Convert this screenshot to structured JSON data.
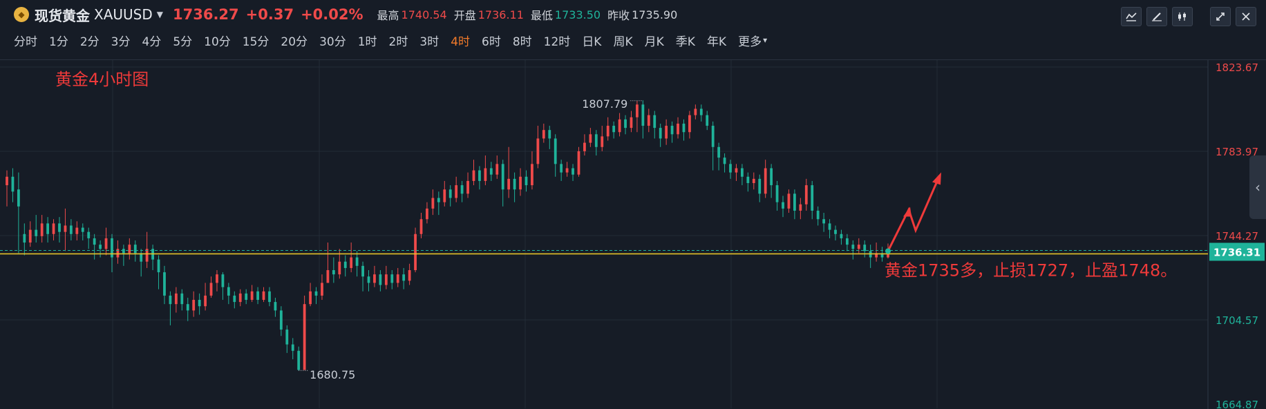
{
  "header": {
    "symbol_name": "现货黄金",
    "symbol_code": "XAUUSD",
    "price": "1736.27",
    "change": "+0.37",
    "change_pct": "+0.02%",
    "high_label": "最高",
    "high": "1740.54",
    "open_label": "开盘",
    "open": "1736.11",
    "low_label": "最低",
    "low": "1733.50",
    "prev_close_label": "昨收",
    "prev_close": "1735.90",
    "colors": {
      "up": "#ef4a4a",
      "down": "#1fb39a",
      "active_period": "#f27a2a"
    }
  },
  "toolbar": {
    "icons": [
      "indicator-icon",
      "draw-icon",
      "candle-type-icon",
      "shrink-icon",
      "close-icon"
    ]
  },
  "periods": {
    "items": [
      "分时",
      "1分",
      "2分",
      "3分",
      "4分",
      "5分",
      "10分",
      "15分",
      "20分",
      "30分",
      "1时",
      "2时",
      "3时",
      "4时",
      "6时",
      "8时",
      "12时",
      "日K",
      "周K",
      "月K",
      "季K",
      "年K",
      "更多"
    ],
    "active": "4时"
  },
  "chart_data": {
    "type": "candlestick",
    "title": "黄金4小时图",
    "ylim": [
      1664.87,
      1823.67
    ],
    "y_ticks": [
      "1823.67",
      "1783.97",
      "1744.27",
      "1704.57",
      "1664.87"
    ],
    "current_price": "1736.31",
    "reference_line": 1736.31,
    "high_marker": {
      "label": "1807.79",
      "value": 1807.79
    },
    "low_marker": {
      "label": "1680.75",
      "value": 1680.75
    },
    "annotation": "黄金1735多，止损1727，止盈1748。",
    "grid": true,
    "candles": [
      [
        1768,
        1772,
        1775,
        1758
      ],
      [
        1772,
        1765,
        1776,
        1760
      ],
      [
        1766,
        1758,
        1774,
        1736
      ],
      [
        1745,
        1741,
        1750,
        1735
      ],
      [
        1741,
        1747,
        1751,
        1739
      ],
      [
        1747,
        1744,
        1754,
        1741
      ],
      [
        1744,
        1750,
        1754,
        1741
      ],
      [
        1750,
        1745,
        1753,
        1741
      ],
      [
        1745,
        1750,
        1752,
        1742
      ],
      [
        1750,
        1746,
        1753,
        1741
      ],
      [
        1746,
        1749,
        1757,
        1737
      ],
      [
        1749,
        1745,
        1752,
        1742
      ],
      [
        1745,
        1748,
        1751,
        1742
      ],
      [
        1748,
        1746,
        1750,
        1742
      ],
      [
        1746,
        1743,
        1748,
        1738
      ],
      [
        1743,
        1740,
        1745,
        1733
      ],
      [
        1740,
        1738,
        1742,
        1734
      ],
      [
        1738,
        1743,
        1748,
        1735
      ],
      [
        1743,
        1734,
        1745,
        1727
      ],
      [
        1734,
        1738,
        1742,
        1731
      ],
      [
        1738,
        1736,
        1740,
        1730
      ],
      [
        1736,
        1740,
        1743,
        1733
      ],
      [
        1740,
        1736,
        1742,
        1732
      ],
      [
        1736,
        1732,
        1738,
        1725
      ],
      [
        1732,
        1738,
        1746,
        1729
      ],
      [
        1738,
        1733,
        1740,
        1728
      ],
      [
        1733,
        1727,
        1735,
        1719
      ],
      [
        1727,
        1716,
        1730,
        1712
      ],
      [
        1716,
        1712,
        1718,
        1702
      ],
      [
        1712,
        1717,
        1720,
        1708
      ],
      [
        1717,
        1712,
        1719,
        1709
      ],
      [
        1712,
        1709,
        1715,
        1704
      ],
      [
        1709,
        1714,
        1718,
        1706
      ],
      [
        1714,
        1711,
        1717,
        1707
      ],
      [
        1711,
        1716,
        1722,
        1709
      ],
      [
        1716,
        1722,
        1725,
        1715
      ],
      [
        1722,
        1726,
        1728,
        1718
      ],
      [
        1726,
        1720,
        1727,
        1714
      ],
      [
        1720,
        1716,
        1722,
        1712
      ],
      [
        1716,
        1713,
        1718,
        1710
      ],
      [
        1713,
        1717,
        1719,
        1711
      ],
      [
        1717,
        1714,
        1719,
        1712
      ],
      [
        1714,
        1718,
        1721,
        1713
      ],
      [
        1718,
        1714,
        1720,
        1712
      ],
      [
        1714,
        1718,
        1720,
        1713
      ],
      [
        1718,
        1713,
        1720,
        1711
      ],
      [
        1713,
        1709,
        1715,
        1706
      ],
      [
        1709,
        1700,
        1711,
        1697
      ],
      [
        1700,
        1693,
        1702,
        1689
      ],
      [
        1693,
        1690,
        1696,
        1686
      ],
      [
        1690,
        1681,
        1692,
        1680.75
      ],
      [
        1681,
        1712,
        1716,
        1681
      ],
      [
        1712,
        1718,
        1722,
        1711
      ],
      [
        1718,
        1716,
        1720,
        1712
      ],
      [
        1716,
        1722,
        1726,
        1714
      ],
      [
        1722,
        1728,
        1741,
        1722
      ],
      [
        1728,
        1726,
        1734,
        1722
      ],
      [
        1726,
        1732,
        1738,
        1724
      ],
      [
        1732,
        1729,
        1735,
        1725
      ],
      [
        1729,
        1734,
        1741,
        1727
      ],
      [
        1734,
        1730,
        1737,
        1725
      ],
      [
        1730,
        1725,
        1732,
        1718
      ],
      [
        1725,
        1722,
        1728,
        1718
      ],
      [
        1722,
        1726,
        1730,
        1720
      ],
      [
        1726,
        1721,
        1728,
        1718
      ],
      [
        1721,
        1726,
        1730,
        1719
      ],
      [
        1726,
        1722,
        1728,
        1719
      ],
      [
        1722,
        1726,
        1729,
        1720
      ],
      [
        1726,
        1723,
        1729,
        1719
      ],
      [
        1723,
        1728,
        1731,
        1721
      ],
      [
        1728,
        1745,
        1748,
        1727
      ],
      [
        1745,
        1752,
        1755,
        1743
      ],
      [
        1752,
        1757,
        1760,
        1750
      ],
      [
        1757,
        1762,
        1766,
        1754
      ],
      [
        1762,
        1760,
        1765,
        1754
      ],
      [
        1760,
        1766,
        1770,
        1758
      ],
      [
        1766,
        1762,
        1768,
        1758
      ],
      [
        1762,
        1768,
        1772,
        1760
      ],
      [
        1768,
        1764,
        1770,
        1760
      ],
      [
        1764,
        1770,
        1774,
        1762
      ],
      [
        1770,
        1775,
        1780,
        1768
      ],
      [
        1775,
        1770,
        1777,
        1766
      ],
      [
        1770,
        1776,
        1782,
        1768
      ],
      [
        1776,
        1773,
        1779,
        1770
      ],
      [
        1773,
        1778,
        1782,
        1771
      ],
      [
        1778,
        1766,
        1780,
        1758
      ],
      [
        1766,
        1771,
        1786,
        1762
      ],
      [
        1771,
        1766,
        1774,
        1760
      ],
      [
        1766,
        1772,
        1776,
        1763
      ],
      [
        1772,
        1768,
        1775,
        1765
      ],
      [
        1768,
        1778,
        1784,
        1766
      ],
      [
        1778,
        1790,
        1796,
        1776
      ],
      [
        1790,
        1794,
        1797,
        1788
      ],
      [
        1794,
        1790,
        1796,
        1785
      ],
      [
        1790,
        1778,
        1792,
        1772
      ],
      [
        1778,
        1774,
        1780,
        1770
      ],
      [
        1774,
        1776,
        1779,
        1772
      ],
      [
        1776,
        1773,
        1778,
        1770
      ],
      [
        1773,
        1784,
        1786,
        1772
      ],
      [
        1784,
        1788,
        1792,
        1782
      ],
      [
        1788,
        1792,
        1795,
        1786
      ],
      [
        1792,
        1786,
        1794,
        1782
      ],
      [
        1786,
        1791,
        1796,
        1784
      ],
      [
        1791,
        1796,
        1800,
        1789
      ],
      [
        1796,
        1793,
        1798,
        1790
      ],
      [
        1793,
        1799,
        1802,
        1791
      ],
      [
        1799,
        1795,
        1801,
        1792
      ],
      [
        1795,
        1800,
        1803,
        1793
      ],
      [
        1800,
        1806,
        1807.79,
        1793
      ],
      [
        1806,
        1796,
        1808,
        1790
      ],
      [
        1796,
        1801,
        1804,
        1793
      ],
      [
        1801,
        1795,
        1803,
        1790
      ],
      [
        1795,
        1790,
        1797,
        1786
      ],
      [
        1790,
        1796,
        1799,
        1787
      ],
      [
        1796,
        1792,
        1798,
        1788
      ],
      [
        1792,
        1797,
        1800,
        1790
      ],
      [
        1797,
        1793,
        1799,
        1789
      ],
      [
        1793,
        1801,
        1803,
        1790
      ],
      [
        1801,
        1804,
        1806,
        1799
      ],
      [
        1804,
        1801,
        1806,
        1798
      ],
      [
        1801,
        1796,
        1803,
        1794
      ],
      [
        1796,
        1786,
        1798,
        1775
      ],
      [
        1786,
        1781,
        1788,
        1775
      ],
      [
        1781,
        1778,
        1783,
        1774
      ],
      [
        1778,
        1774,
        1780,
        1771
      ],
      [
        1774,
        1776,
        1778,
        1770
      ],
      [
        1776,
        1772,
        1778,
        1768
      ],
      [
        1772,
        1769,
        1774,
        1765
      ],
      [
        1769,
        1771,
        1774,
        1766
      ],
      [
        1771,
        1764,
        1773,
        1760
      ],
      [
        1764,
        1776,
        1780,
        1762
      ],
      [
        1776,
        1768,
        1778,
        1762
      ],
      [
        1768,
        1760,
        1770,
        1756
      ],
      [
        1760,
        1757,
        1763,
        1753
      ],
      [
        1757,
        1764,
        1766,
        1755
      ],
      [
        1764,
        1756,
        1766,
        1752
      ],
      [
        1756,
        1759,
        1762,
        1752
      ],
      [
        1759,
        1768,
        1771,
        1756
      ],
      [
        1768,
        1756,
        1770,
        1752
      ],
      [
        1756,
        1752,
        1758,
        1749
      ],
      [
        1752,
        1750,
        1755,
        1746
      ],
      [
        1750,
        1747,
        1752,
        1743
      ],
      [
        1747,
        1745,
        1749,
        1742
      ],
      [
        1745,
        1743,
        1747,
        1740
      ],
      [
        1743,
        1740,
        1745,
        1737
      ],
      [
        1740,
        1738,
        1742,
        1733
      ],
      [
        1738,
        1740,
        1743,
        1736
      ],
      [
        1740,
        1737,
        1742,
        1734
      ],
      [
        1737,
        1734,
        1740,
        1729
      ],
      [
        1734,
        1736,
        1741,
        1732
      ],
      [
        1736,
        1734,
        1739,
        1732
      ],
      [
        1734,
        1736.3,
        1740.54,
        1733.5
      ]
    ]
  }
}
